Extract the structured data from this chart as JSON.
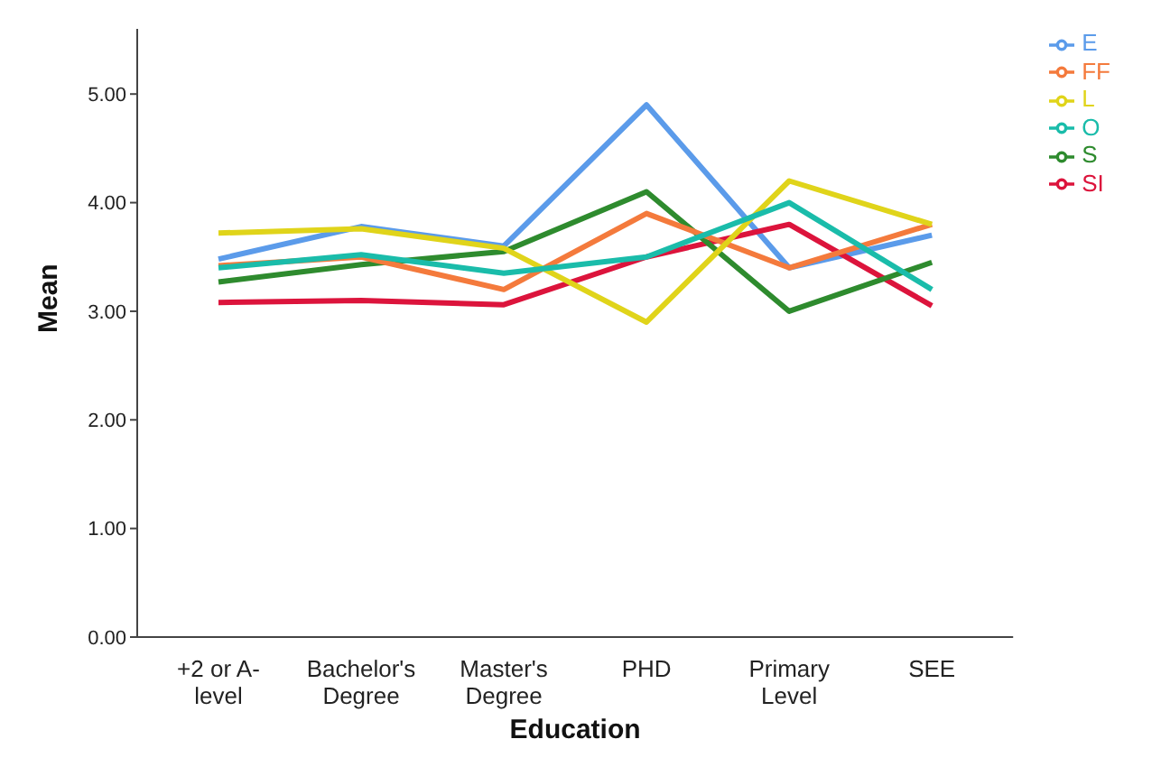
{
  "chart_data": {
    "type": "line",
    "xlabel": "Education",
    "ylabel": "Mean",
    "categories": [
      "+2 or A-level",
      "Bachelor's Degree",
      "Master's Degree",
      "PHD",
      "Primary Level",
      "SEE"
    ],
    "series": [
      {
        "name": "E",
        "color": "#5b9bea",
        "values": [
          3.48,
          3.78,
          3.6,
          4.9,
          3.4,
          3.7
        ]
      },
      {
        "name": "SI",
        "color": "#dc143c",
        "values": [
          3.08,
          3.1,
          3.06,
          3.5,
          3.8,
          3.05
        ]
      },
      {
        "name": "S",
        "color": "#2e8b2e",
        "values": [
          3.27,
          3.43,
          3.55,
          4.1,
          3.0,
          3.45
        ]
      },
      {
        "name": "FF",
        "color": "#f47a3c",
        "values": [
          3.42,
          3.5,
          3.2,
          3.9,
          3.4,
          3.8
        ]
      },
      {
        "name": "L",
        "color": "#e0d41a",
        "values": [
          3.72,
          3.76,
          3.58,
          2.9,
          4.2,
          3.8
        ]
      },
      {
        "name": "O",
        "color": "#1abcaa",
        "values": [
          3.4,
          3.52,
          3.35,
          3.5,
          4.0,
          3.2
        ]
      }
    ],
    "ylim": [
      0,
      5.6
    ],
    "yticks": [
      {
        "value": 0,
        "label": "0.00"
      },
      {
        "value": 1,
        "label": "1.00"
      },
      {
        "value": 2,
        "label": "2.00"
      },
      {
        "value": 3,
        "label": "3.00"
      },
      {
        "value": 4,
        "label": "4.00"
      },
      {
        "value": 5,
        "label": "5.00"
      }
    ],
    "grid": false,
    "legend": "top right",
    "marker": "none",
    "line_style": "solid"
  }
}
